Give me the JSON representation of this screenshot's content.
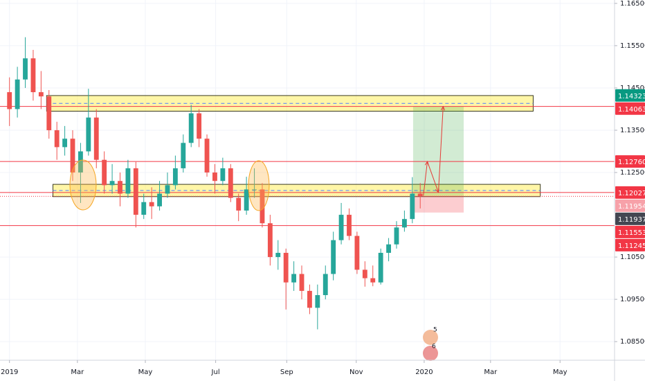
{
  "chart_data": {
    "type": "candlestick",
    "x": [
      0,
      1,
      2,
      3,
      4,
      5,
      6,
      7,
      8,
      9,
      10,
      11,
      12,
      13,
      14,
      15,
      16,
      17,
      18,
      19,
      20,
      21,
      22,
      23,
      24,
      25,
      26,
      27,
      28,
      29,
      30,
      31,
      32,
      33,
      34,
      35,
      36,
      37,
      38,
      39,
      40,
      41,
      42,
      43,
      44,
      45,
      46,
      47,
      48,
      49,
      50,
      51,
      52
    ],
    "open": [
      1.144,
      1.14,
      1.147,
      1.152,
      1.144,
      1.143,
      1.135,
      1.131,
      1.133,
      1.125,
      1.13,
      1.138,
      1.128,
      1.122,
      1.123,
      1.12,
      1.126,
      1.115,
      1.118,
      1.117,
      1.12,
      1.122,
      1.126,
      1.132,
      1.139,
      1.133,
      1.125,
      1.123,
      1.126,
      1.119,
      1.116,
      1.121,
      1.121,
      1.113,
      1.105,
      1.106,
      1.099,
      1.101,
      1.097,
      1.093,
      1.096,
      1.101,
      1.109,
      1.115,
      1.11,
      1.102,
      1.1,
      1.099,
      1.106,
      1.108,
      1.112,
      1.114,
      1.12
    ],
    "high": [
      1.1475,
      1.15,
      1.157,
      1.154,
      1.149,
      1.1445,
      1.137,
      1.136,
      1.135,
      1.132,
      1.1448,
      1.14,
      1.13,
      1.127,
      1.125,
      1.128,
      1.1275,
      1.12,
      1.1215,
      1.123,
      1.125,
      1.129,
      1.134,
      1.141,
      1.14,
      1.134,
      1.127,
      1.1285,
      1.127,
      1.12,
      1.124,
      1.126,
      1.1225,
      1.115,
      1.109,
      1.107,
      1.104,
      1.103,
      1.0985,
      1.0985,
      1.103,
      1.111,
      1.1178,
      1.1165,
      1.111,
      1.104,
      1.103,
      1.107,
      1.1095,
      1.1135,
      1.116,
      1.1239,
      1.1225
    ],
    "low": [
      1.136,
      1.138,
      1.145,
      1.142,
      1.14,
      1.133,
      1.128,
      1.129,
      1.123,
      1.1178,
      1.129,
      1.126,
      1.12,
      1.12,
      1.117,
      1.119,
      1.112,
      1.114,
      1.114,
      1.116,
      1.119,
      1.121,
      1.125,
      1.131,
      1.131,
      1.124,
      1.12,
      1.122,
      1.118,
      1.1135,
      1.115,
      1.119,
      1.112,
      1.103,
      1.102,
      1.0926,
      1.097,
      1.095,
      1.0915,
      1.0879,
      1.095,
      1.0995,
      1.108,
      1.109,
      1.101,
      1.098,
      1.0981,
      1.0985,
      1.104,
      1.107,
      1.111,
      1.113,
      1.1165
    ],
    "close": [
      1.14,
      1.147,
      1.152,
      1.144,
      1.143,
      1.135,
      1.131,
      1.133,
      1.125,
      1.13,
      1.138,
      1.128,
      1.122,
      1.123,
      1.12,
      1.126,
      1.115,
      1.118,
      1.117,
      1.12,
      1.122,
      1.126,
      1.132,
      1.139,
      1.133,
      1.125,
      1.123,
      1.126,
      1.119,
      1.116,
      1.121,
      1.121,
      1.113,
      1.105,
      1.106,
      1.099,
      1.101,
      1.097,
      1.093,
      1.096,
      1.101,
      1.109,
      1.115,
      1.11,
      1.102,
      1.1,
      1.099,
      1.106,
      1.108,
      1.112,
      1.114,
      1.12,
      1.1194
    ],
    "up_color": "#26a69a",
    "down_color": "#ef5350",
    "xlim": [
      -1.2,
      76.6
    ],
    "xticks": [
      {
        "value": 0,
        "label": "2019"
      },
      {
        "value": 8.6,
        "label": "Mar"
      },
      {
        "value": 17.2,
        "label": "May"
      },
      {
        "value": 26.1,
        "label": "Jul"
      },
      {
        "value": 35.1,
        "label": "Sep"
      },
      {
        "value": 43.9,
        "label": "Nov"
      },
      {
        "value": 52.5,
        "label": "2020"
      },
      {
        "value": 60.9,
        "label": "Mar"
      },
      {
        "value": 69.7,
        "label": "May"
      }
    ],
    "ylim": [
      1.0806,
      1.1658
    ],
    "yticks": [
      {
        "value": 1.165,
        "label": "1.16500"
      },
      {
        "value": 1.155,
        "label": "1.15500"
      },
      {
        "value": 1.145,
        "label": "1.14500"
      },
      {
        "value": 1.135,
        "label": "1.13500"
      },
      {
        "value": 1.125,
        "label": "1.12500"
      },
      {
        "value": 1.105,
        "label": "1.10500"
      },
      {
        "value": 1.095,
        "label": "1.09500"
      },
      {
        "value": 1.085,
        "label": "1.08500"
      }
    ],
    "grid": true,
    "zones": [
      {
        "from": 1.1395,
        "to": 1.1432,
        "x": [
          4.7,
          66.3
        ]
      },
      {
        "from": 1.1193,
        "to": 1.1222,
        "x": [
          5.5,
          67.2
        ]
      }
    ],
    "levels": [
      {
        "value": 1.14063,
        "color": "#f23645"
      },
      {
        "value": 1.1276,
        "color": "#f23645"
      },
      {
        "value": 1.12027,
        "color": "#f23645"
      },
      {
        "value": 1.11245,
        "color": "#f23645"
      }
    ],
    "position": {
      "x": [
        51.1,
        57.5
      ],
      "entry": 1.11954,
      "target": 1.14063,
      "stop": 1.11553
    },
    "arrow": {
      "x": [
        52.4,
        52.9,
        54.3,
        54.9
      ],
      "y": [
        1.1195,
        1.1276,
        1.1203,
        1.1406
      ]
    },
    "price_labels": [
      {
        "value": 1.14323,
        "label": "1.14323",
        "color": "#089981"
      },
      {
        "value": 1.14063,
        "label": "1.14063",
        "color": "#f23645"
      },
      {
        "value": 1.1276,
        "label": "1.12760",
        "color": "#f23645"
      },
      {
        "value": 1.12027,
        "label": "1.12027",
        "color": "#f23645"
      },
      {
        "value": 1.11954,
        "label": "1.11954",
        "color": "#f7a1a9"
      },
      {
        "value": 1.11937,
        "label": "1.11937",
        "color": "#434651"
      },
      {
        "value": 1.11553,
        "label": "1.11553",
        "color": "#f23645"
      },
      {
        "value": 1.11245,
        "label": "1.11245",
        "color": "#f23645"
      }
    ],
    "watermark": [
      "5",
      "6"
    ]
  }
}
